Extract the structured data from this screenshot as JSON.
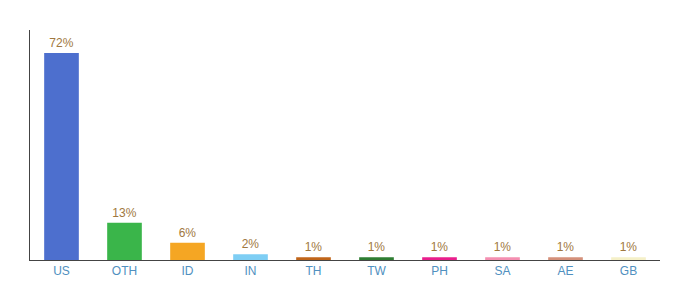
{
  "chart_data": {
    "type": "bar",
    "categories": [
      "US",
      "OTH",
      "ID",
      "IN",
      "TH",
      "TW",
      "PH",
      "SA",
      "AE",
      "GB"
    ],
    "values": [
      72,
      13,
      6,
      2,
      1,
      1,
      1,
      1,
      1,
      1
    ],
    "value_labels": [
      "72%",
      "13%",
      "6%",
      "2%",
      "1%",
      "1%",
      "1%",
      "1%",
      "1%",
      "1%"
    ],
    "colors": [
      "#4d6fce",
      "#3ab54a",
      "#f5a623",
      "#7ecef4",
      "#c0651a",
      "#2e7d32",
      "#e91e8c",
      "#f48fb1",
      "#d4907a",
      "#f5f0c8"
    ],
    "ylim": [
      0,
      80
    ],
    "data_labels": true,
    "tick_labels": "x",
    "grid": false
  }
}
